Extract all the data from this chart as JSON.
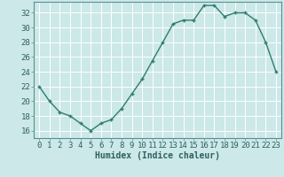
{
  "x": [
    0,
    1,
    2,
    3,
    4,
    5,
    6,
    7,
    8,
    9,
    10,
    11,
    12,
    13,
    14,
    15,
    16,
    17,
    18,
    19,
    20,
    21,
    22,
    23
  ],
  "y": [
    22,
    20,
    18.5,
    18,
    17,
    16,
    17,
    17.5,
    19,
    21,
    23,
    25.5,
    28,
    30.5,
    31,
    31,
    33,
    33,
    31.5,
    32,
    32,
    31,
    28,
    24
  ],
  "line_color": "#2e7d6e",
  "marker": "+",
  "marker_color": "#2e7d6e",
  "bg_color": "#cce8e8",
  "grid_color": "#b0d4d4",
  "xlabel": "Humidex (Indice chaleur)",
  "xlim": [
    -0.5,
    23.5
  ],
  "ylim": [
    15.0,
    33.5
  ],
  "yticks": [
    16,
    18,
    20,
    22,
    24,
    26,
    28,
    30,
    32
  ],
  "xtick_labels": [
    "0",
    "1",
    "2",
    "3",
    "4",
    "5",
    "6",
    "7",
    "8",
    "9",
    "10",
    "11",
    "12",
    "13",
    "14",
    "15",
    "16",
    "17",
    "18",
    "19",
    "20",
    "21",
    "22",
    "23"
  ],
  "xlabel_fontsize": 7,
  "tick_fontsize": 6.5,
  "linewidth": 1.0,
  "markersize": 3.5
}
